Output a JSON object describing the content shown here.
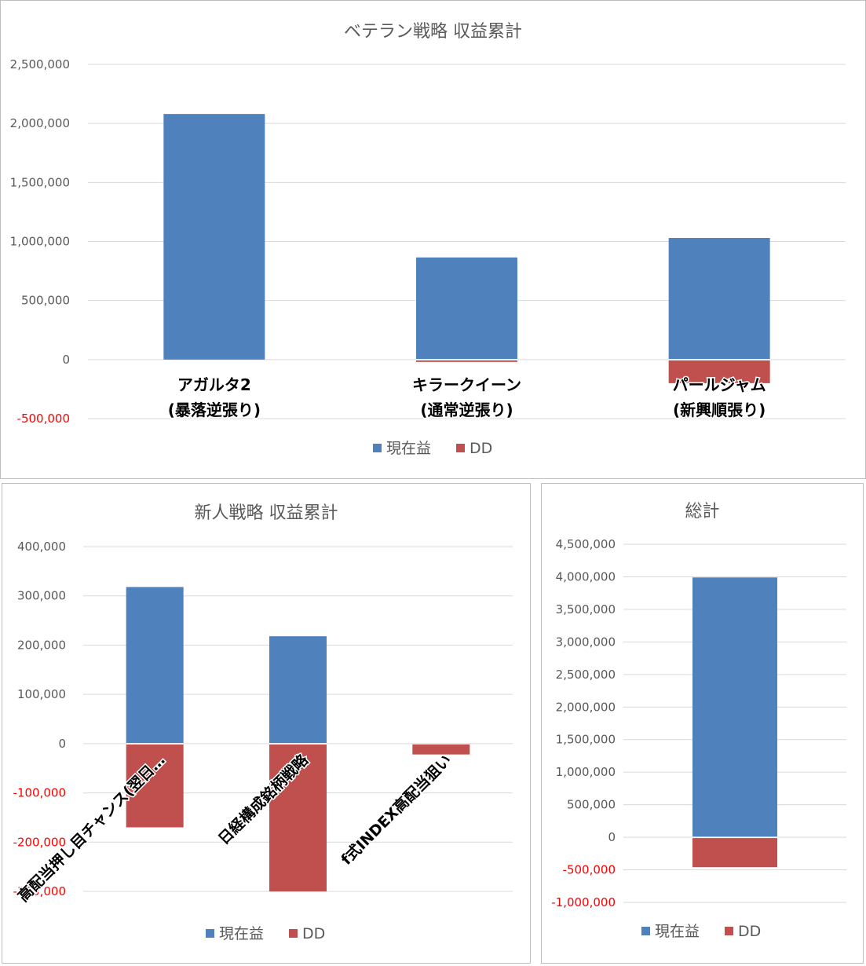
{
  "colors": {
    "current_profit": "#4f81bd",
    "dd": "#c0504d",
    "grid": "#d9d9d9",
    "axis_text": "#595959",
    "negative_tick": "#ff0000"
  },
  "chart_data": [
    {
      "type": "bar",
      "stacked": true,
      "title": "ベテラン戦略 収益累計",
      "categories": [
        [
          "アガルタ2",
          "(暴落逆張り)"
        ],
        [
          "キラークイーン",
          "(通常逆張り)"
        ],
        [
          "パールジャム",
          "(新興順張り)"
        ]
      ],
      "series": [
        {
          "name": "現在益",
          "values": [
            2080000,
            865000,
            1030000
          ]
        },
        {
          "name": "DD",
          "values": [
            0,
            -20000,
            -200000
          ]
        }
      ],
      "ylim": [
        -500000,
        2500000
      ],
      "yticks": [
        2500000,
        2000000,
        1500000,
        1000000,
        500000,
        0,
        -500000
      ],
      "ytick_labels": [
        "2,500,000",
        "2,000,000",
        "1,500,000",
        "1,000,000",
        "500,000",
        "0",
        "-500,000"
      ],
      "grid": true,
      "legend": "bottom"
    },
    {
      "type": "bar",
      "stacked": true,
      "title": "新人戦略 収益累計",
      "categories": [
        "高配当押し目チャンス(翌日…",
        "日経構成銘柄戦略",
        "f式INDEX高配当狙い"
      ],
      "series": [
        {
          "name": "現在益",
          "values": [
            318000,
            218000,
            0
          ]
        },
        {
          "name": "DD",
          "values": [
            -170000,
            -300000,
            -22000
          ]
        }
      ],
      "ylim": [
        -300000,
        400000
      ],
      "yticks": [
        400000,
        300000,
        200000,
        100000,
        0,
        -100000,
        -200000,
        -300000
      ],
      "ytick_labels": [
        "400,000",
        "300,000",
        "200,000",
        "100,000",
        "0",
        "-100,000",
        "-200,000",
        "-300,000"
      ],
      "grid": true,
      "legend": "bottom"
    },
    {
      "type": "bar",
      "stacked": true,
      "title": "総計",
      "categories": [
        ""
      ],
      "series": [
        {
          "name": "現在益",
          "values": [
            3990000
          ]
        },
        {
          "name": "DD",
          "values": [
            -460000
          ]
        }
      ],
      "ylim": [
        -1000000,
        4500000
      ],
      "yticks": [
        4500000,
        4000000,
        3500000,
        3000000,
        2500000,
        2000000,
        1500000,
        1000000,
        500000,
        0,
        -500000,
        -1000000
      ],
      "ytick_labels": [
        "4,500,000",
        "4,000,000",
        "3,500,000",
        "3,000,000",
        "2,500,000",
        "2,000,000",
        "1,500,000",
        "1,000,000",
        "500,000",
        "0",
        "-500,000",
        "-1,000,000"
      ],
      "grid": true,
      "legend": "bottom"
    }
  ]
}
